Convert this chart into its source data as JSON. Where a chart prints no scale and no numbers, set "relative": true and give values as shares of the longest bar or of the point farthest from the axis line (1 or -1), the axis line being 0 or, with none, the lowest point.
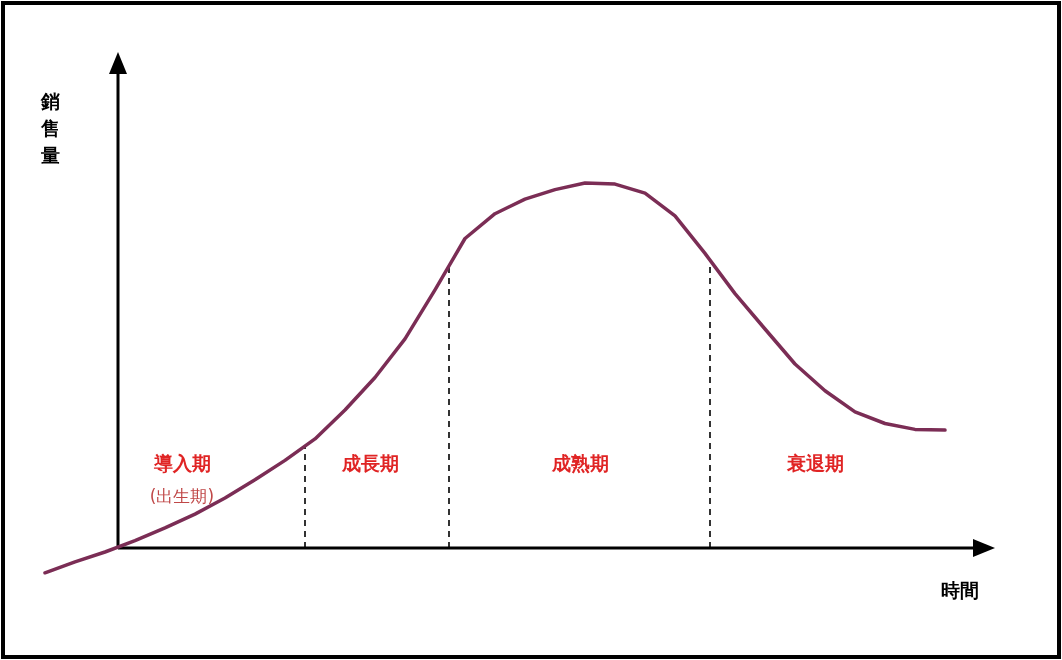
{
  "chart_data": {
    "type": "line",
    "relative": true,
    "xlabel": "時間",
    "ylabel": "銷售量",
    "categories": [
      null,
      null,
      null,
      null,
      null,
      null,
      null,
      null,
      null,
      null,
      null,
      null,
      null,
      null,
      null,
      null,
      null,
      null,
      null,
      null,
      null,
      null,
      null,
      null,
      null,
      null,
      null,
      null,
      null,
      null,
      null
    ],
    "series": [
      {
        "color": "#7b2d55",
        "values": [
          -0.068,
          -0.038,
          -0.011,
          0.02,
          0.055,
          0.093,
          0.137,
          0.187,
          0.24,
          0.299,
          0.378,
          0.467,
          0.573,
          0.707,
          0.848,
          0.916,
          0.956,
          0.982,
          1,
          0.997,
          0.972,
          0.91,
          0.807,
          0.697,
          0.6,
          0.504,
          0.431,
          0.373,
          0.341,
          0.325,
          0.323
        ]
      }
    ],
    "annotations": [
      "導入期",
      "成長期",
      "成熟期",
      "衰退期",
      "(出生期)"
    ]
  }
}
